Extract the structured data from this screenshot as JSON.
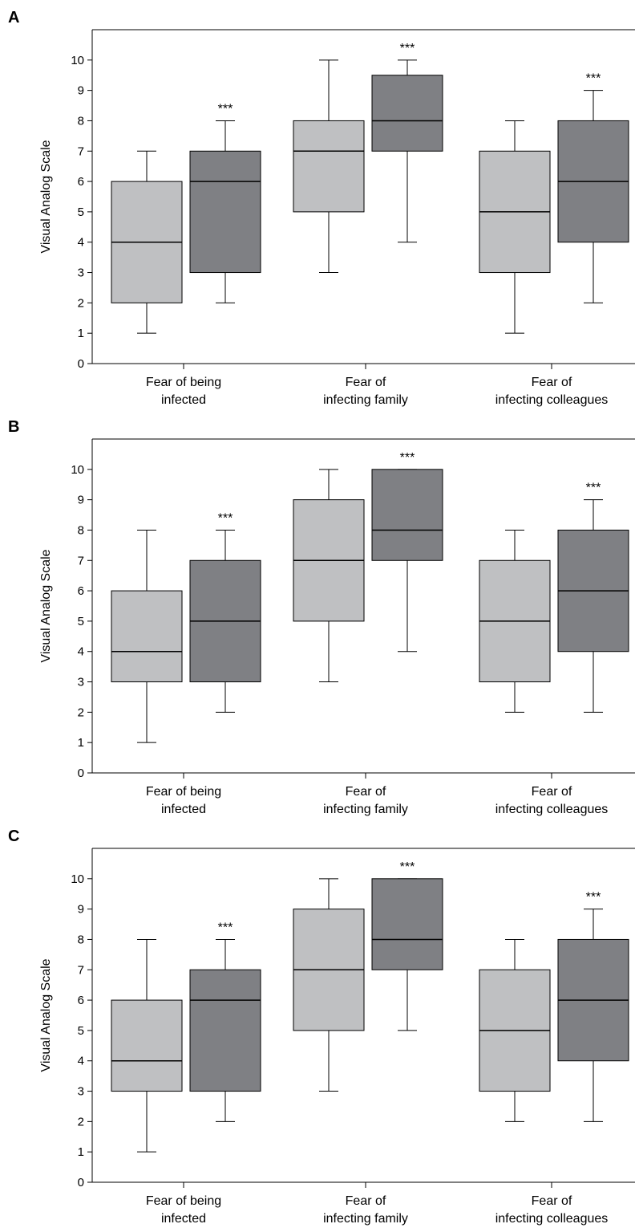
{
  "colors": {
    "light_box": "#bfc0c2",
    "dark_box": "#7f8084",
    "axis": "#000000"
  },
  "chart_data": [
    {
      "panel": "A",
      "type": "box",
      "ylabel": "Visual Analog Scale",
      "ylim": [
        0,
        11
      ],
      "yticks": [
        "0",
        "1",
        "2",
        "3",
        "4",
        "5",
        "6",
        "7",
        "8",
        "9",
        "10"
      ],
      "categories": [
        {
          "line1": "Fear of being",
          "line2": "infected"
        },
        {
          "line1": "Fear of",
          "line2": "infecting family"
        },
        {
          "line1": "Fear of",
          "line2": "infecting colleagues"
        }
      ],
      "boxes": [
        {
          "category": 0,
          "shade": "light",
          "min": 1,
          "q1": 2,
          "median": 4,
          "q3": 6,
          "max": 7,
          "sig": ""
        },
        {
          "category": 0,
          "shade": "dark",
          "min": 2,
          "q1": 3,
          "median": 6,
          "q3": 7,
          "max": 8,
          "sig": "***"
        },
        {
          "category": 1,
          "shade": "light",
          "min": 3,
          "q1": 5,
          "median": 7,
          "q3": 8,
          "max": 10,
          "sig": ""
        },
        {
          "category": 1,
          "shade": "dark",
          "min": 4,
          "q1": 7,
          "median": 8,
          "q3": 9.5,
          "max": 10,
          "sig": "***"
        },
        {
          "category": 2,
          "shade": "light",
          "min": 1,
          "q1": 3,
          "median": 5,
          "q3": 7,
          "max": 8,
          "sig": ""
        },
        {
          "category": 2,
          "shade": "dark",
          "min": 2,
          "q1": 4,
          "median": 6,
          "q3": 8,
          "max": 9,
          "sig": "***"
        }
      ]
    },
    {
      "panel": "B",
      "type": "box",
      "ylabel": "Visual Analog Scale",
      "ylim": [
        0,
        11
      ],
      "yticks": [
        "0",
        "1",
        "2",
        "3",
        "4",
        "5",
        "6",
        "7",
        "8",
        "9",
        "10"
      ],
      "categories": [
        {
          "line1": "Fear of being",
          "line2": "infected"
        },
        {
          "line1": "Fear of",
          "line2": "infecting family"
        },
        {
          "line1": "Fear of",
          "line2": "infecting colleagues"
        }
      ],
      "boxes": [
        {
          "category": 0,
          "shade": "light",
          "min": 1,
          "q1": 3,
          "median": 4,
          "q3": 6,
          "max": 8,
          "sig": ""
        },
        {
          "category": 0,
          "shade": "dark",
          "min": 2,
          "q1": 3,
          "median": 5,
          "q3": 7,
          "max": 8,
          "sig": "***"
        },
        {
          "category": 1,
          "shade": "light",
          "min": 3,
          "q1": 5,
          "median": 7,
          "q3": 9,
          "max": 10,
          "sig": ""
        },
        {
          "category": 1,
          "shade": "dark",
          "min": 4,
          "q1": 7,
          "median": 8,
          "q3": 10,
          "max": 10,
          "sig": "***"
        },
        {
          "category": 2,
          "shade": "light",
          "min": 2,
          "q1": 3,
          "median": 5,
          "q3": 7,
          "max": 8,
          "sig": ""
        },
        {
          "category": 2,
          "shade": "dark",
          "min": 2,
          "q1": 4,
          "median": 6,
          "q3": 8,
          "max": 9,
          "sig": "***"
        }
      ]
    },
    {
      "panel": "C",
      "type": "box",
      "ylabel": "Visual Analog Scale",
      "ylim": [
        0,
        11
      ],
      "yticks": [
        "0",
        "1",
        "2",
        "3",
        "4",
        "5",
        "6",
        "7",
        "8",
        "9",
        "10"
      ],
      "categories": [
        {
          "line1": "Fear of being",
          "line2": "infected"
        },
        {
          "line1": "Fear of",
          "line2": "infecting family"
        },
        {
          "line1": "Fear of",
          "line2": "infecting colleagues"
        }
      ],
      "boxes": [
        {
          "category": 0,
          "shade": "light",
          "min": 1,
          "q1": 3,
          "median": 4,
          "q3": 6,
          "max": 8,
          "sig": ""
        },
        {
          "category": 0,
          "shade": "dark",
          "min": 2,
          "q1": 3,
          "median": 6,
          "q3": 7,
          "max": 8,
          "sig": "***"
        },
        {
          "category": 1,
          "shade": "light",
          "min": 3,
          "q1": 5,
          "median": 7,
          "q3": 9,
          "max": 10,
          "sig": ""
        },
        {
          "category": 1,
          "shade": "dark",
          "min": 5,
          "q1": 7,
          "median": 8,
          "q3": 10,
          "max": 10,
          "sig": "***"
        },
        {
          "category": 2,
          "shade": "light",
          "min": 2,
          "q1": 3,
          "median": 5,
          "q3": 7,
          "max": 8,
          "sig": ""
        },
        {
          "category": 2,
          "shade": "dark",
          "min": 2,
          "q1": 4,
          "median": 6,
          "q3": 8,
          "max": 9,
          "sig": "***"
        }
      ]
    }
  ]
}
